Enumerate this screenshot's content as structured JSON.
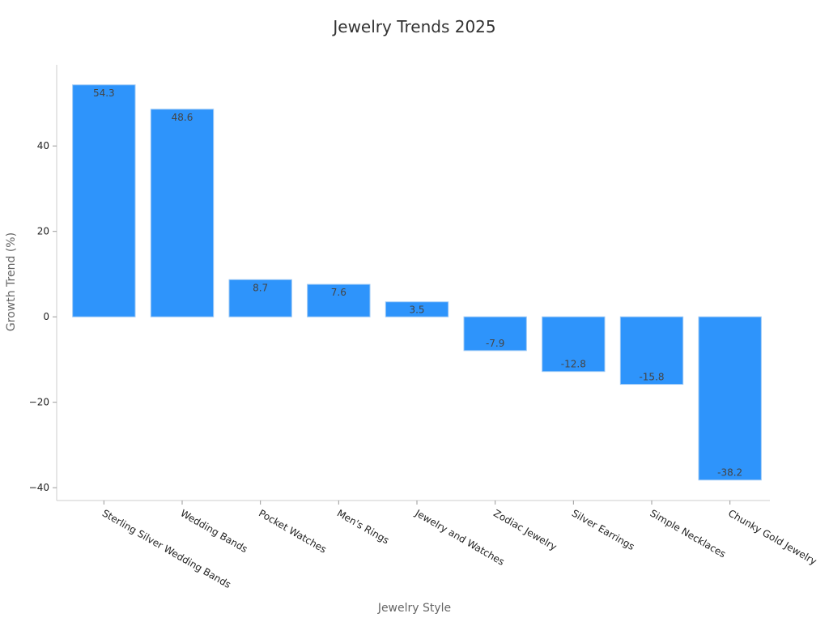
{
  "chart_data": {
    "type": "bar",
    "title": "Jewelry Trends 2025",
    "xlabel": "Jewelry Style",
    "ylabel": "Growth Trend (%)",
    "categories": [
      "Sterling Silver Wedding Bands",
      "Wedding Bands",
      "Pocket Watches",
      "Men's Rings",
      "Jewelry and Watches",
      "Zodiac Jewelry",
      "Silver Earrings",
      "Simple Necklaces",
      "Chunky Gold Jewelry"
    ],
    "values": [
      54.3,
      48.6,
      8.7,
      7.6,
      3.5,
      -7.9,
      -12.8,
      -15.8,
      -38.2
    ],
    "value_labels": [
      "54.3",
      "48.6",
      "8.7",
      "7.6",
      "3.5",
      "-7.9",
      "-12.8",
      "-15.8",
      "-38.2"
    ],
    "ylim": [
      -43,
      59
    ],
    "yticks": [
      -40,
      -20,
      0,
      20,
      40
    ],
    "ytick_labels": [
      "−40",
      "−20",
      "0",
      "20",
      "40"
    ],
    "grid": false,
    "colors": {
      "bar": "#2e94fb",
      "bar_edge": "#9cc8f5",
      "axis": "#cccccc",
      "text": "#222222"
    }
  }
}
